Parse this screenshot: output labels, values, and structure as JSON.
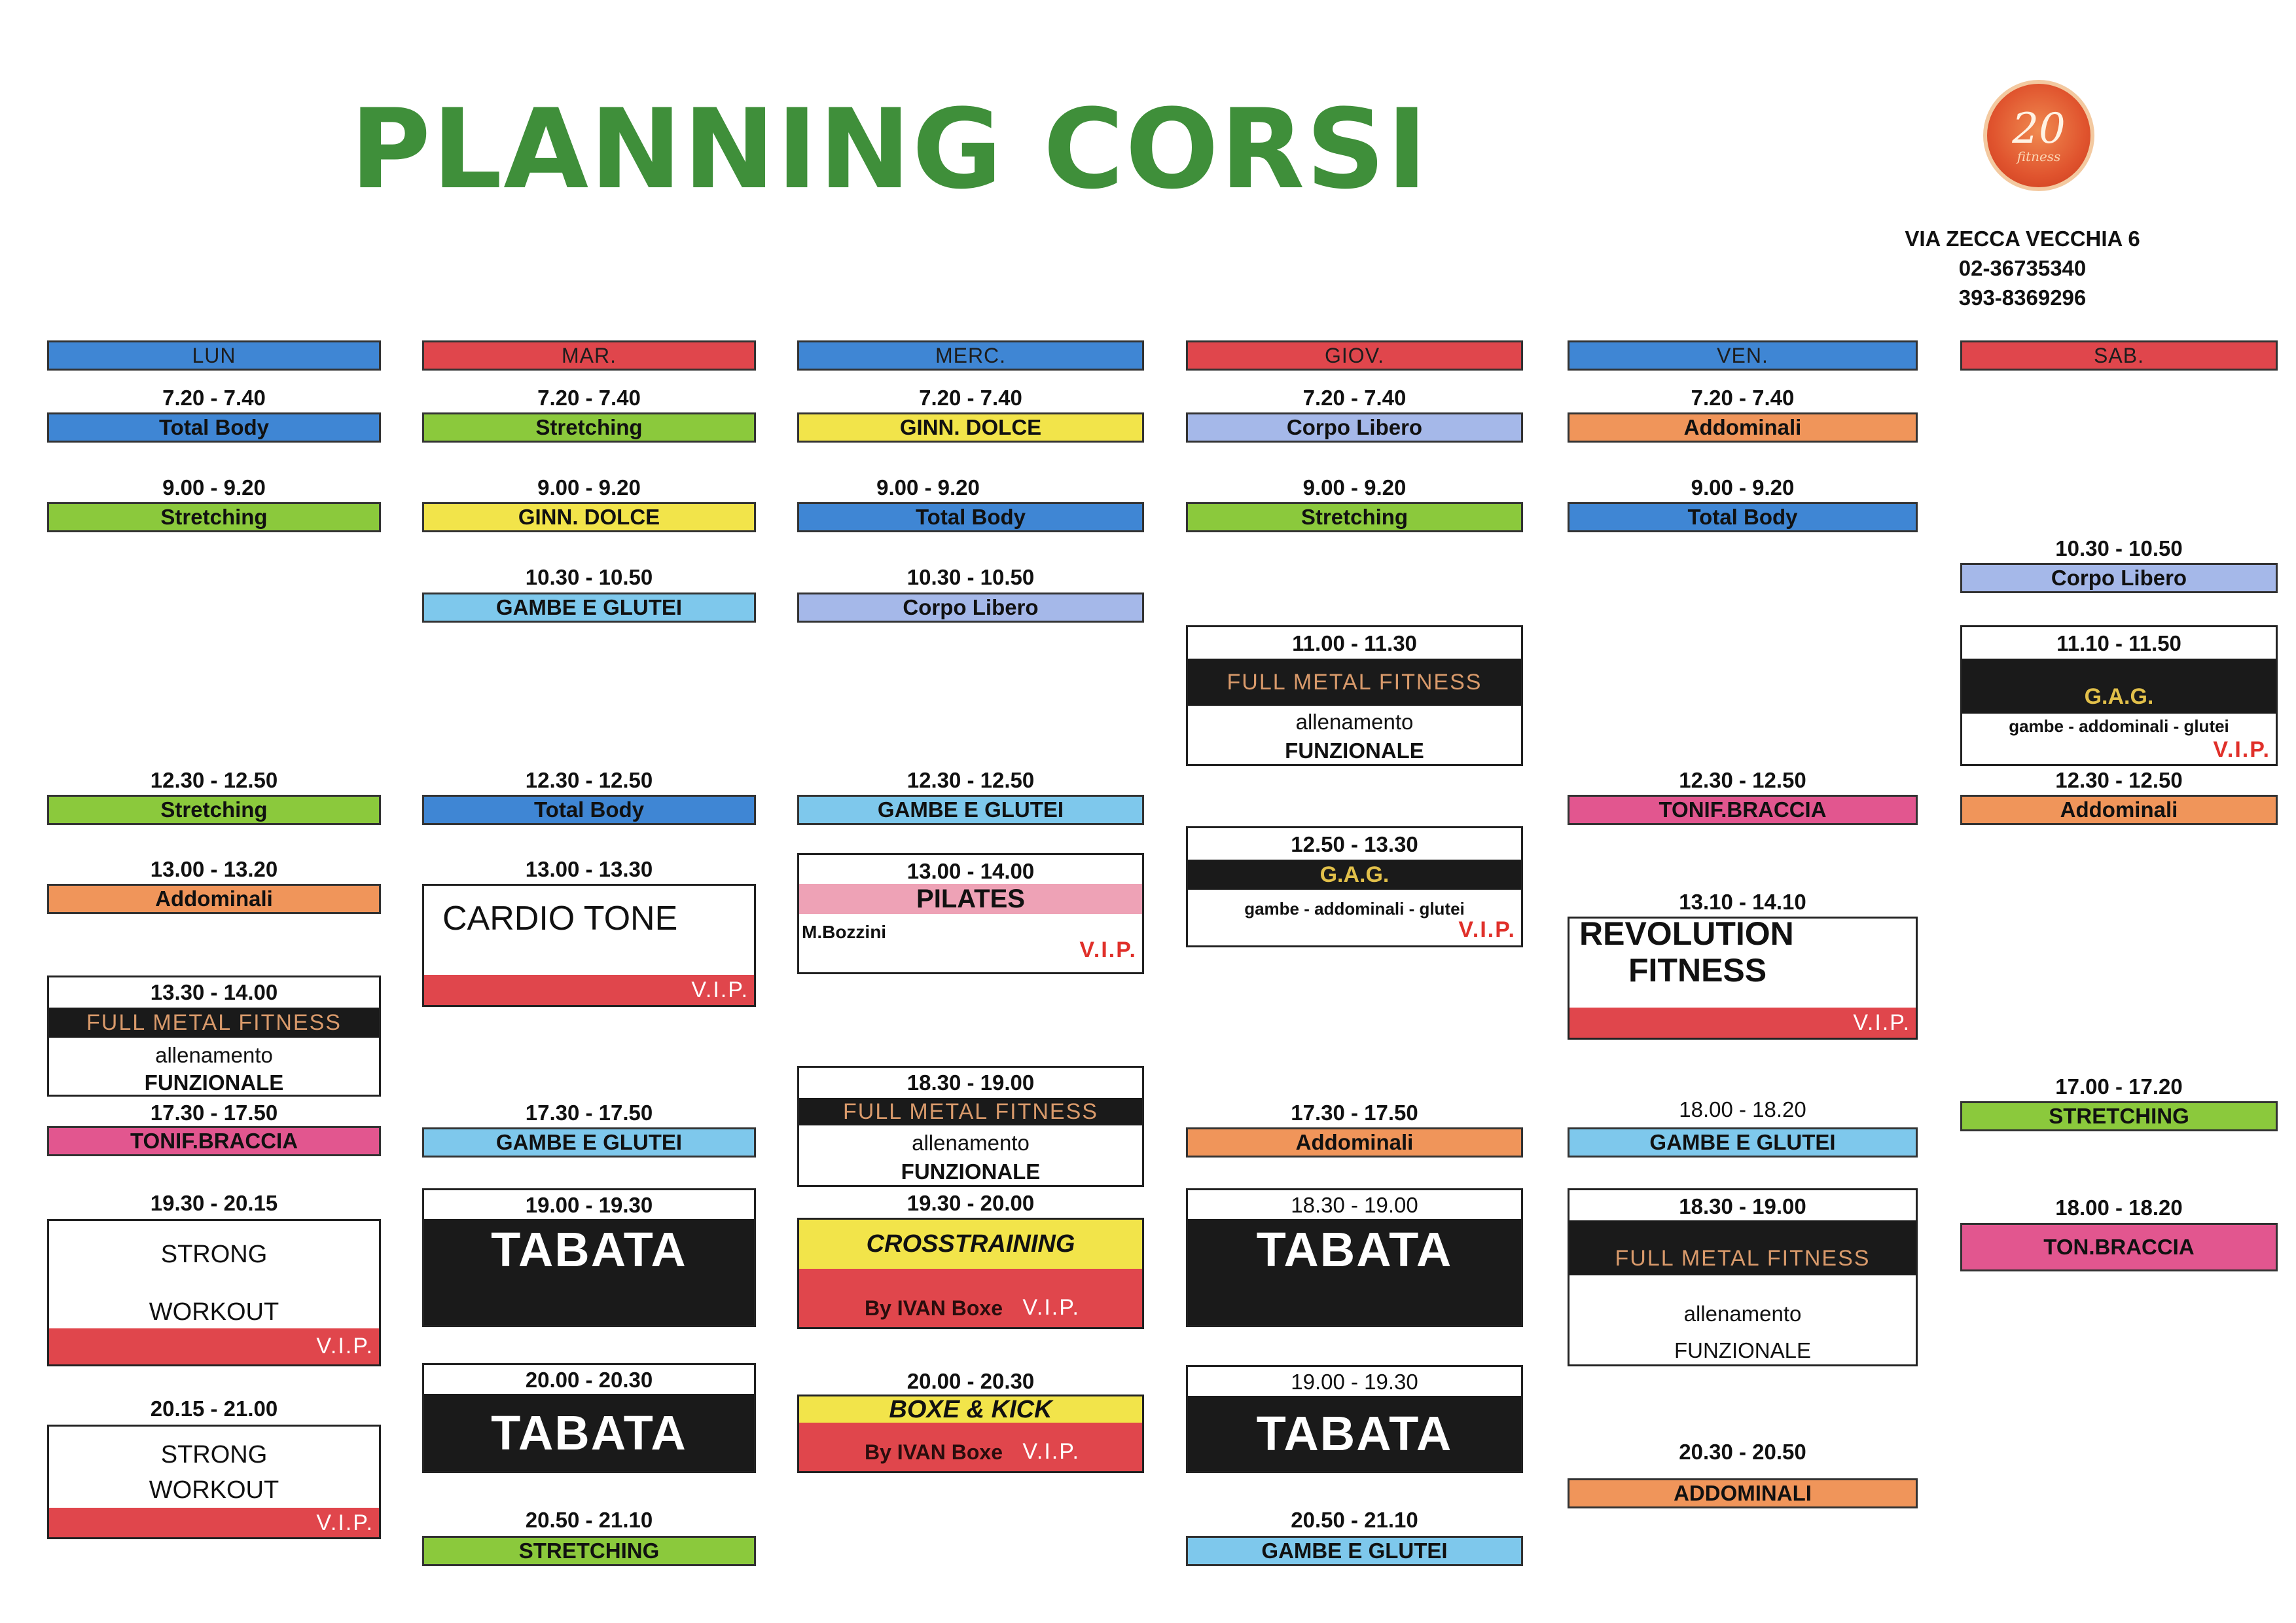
{
  "header": {
    "title": "PLANNING CORSI",
    "logo_number": "20",
    "logo_tag": "fitness",
    "address": "VIA ZECCA VECCHIA 6",
    "phone1": "02-36735340",
    "phone2": "393-8369296"
  },
  "days": [
    "LUN",
    "MAR.",
    "MERC.",
    "GIOV.",
    "VEN.",
    "SAB."
  ],
  "colors": {
    "blue": "#3f86d4",
    "red": "#e0464c",
    "green": "#8bc93c",
    "yellow": "#f2e44a",
    "lavender": "#a5b8e9",
    "orange": "#f0955a",
    "sky": "#7ec8ec",
    "pink": "#e2568f",
    "rose": "#eea2b6",
    "black": "#1a1a1a",
    "title_green": "#3f8f3a"
  },
  "lun": {
    "c1_time": "7.20 - 7.40",
    "c1": "Total Body",
    "c2_time": "9.00 - 9.20",
    "c2": "Stretching",
    "c3_time": "12.30 - 12.50",
    "c3": "Stretching",
    "c4_time": "13.00 - 13.20",
    "c4": "Addominali",
    "c5_time": "13.30 - 14.00",
    "c5_title": "FULL METAL FITNESS",
    "c5_l1": "allenamento",
    "c5_l2": "FUNZIONALE",
    "c6_time": "17.30 - 17.50",
    "c6": "TONIF.BRACCIA",
    "c7_time": "19.30 - 20.15",
    "c7_l1": "STRONG",
    "c7_l2": "WORKOUT",
    "c7_vip": "V.I.P.",
    "c8_time": "20.15 - 21.00",
    "c8_l1": "STRONG",
    "c8_l2": "WORKOUT",
    "c8_vip": "V.I.P."
  },
  "mar": {
    "c1_time": "7.20 - 7.40",
    "c1": "Stretching",
    "c2_time": "9.00 - 9.20",
    "c2": "GINN. DOLCE",
    "c3_time": "10.30 - 10.50",
    "c3": "GAMBE E GLUTEI",
    "c4_time": "12.30 - 12.50",
    "c4": "Total Body",
    "c5_time": "13.00 - 13.30",
    "c5": "CARDIO TONE",
    "c5_vip": "V.I.P.",
    "c6_time": "17.30 - 17.50",
    "c6": "GAMBE E GLUTEI",
    "c7_time": "19.00 - 19.30",
    "c7": "TABATA",
    "c8_time": "20.00 - 20.30",
    "c8": "TABATA",
    "c9_time": "20.50 - 21.10",
    "c9": "STRETCHING"
  },
  "merc": {
    "c1_time": "7.20 - 7.40",
    "c1": "GINN. DOLCE",
    "c2_time": "9.00 - 9.20",
    "c2": "Total Body",
    "c3_time": "10.30 - 10.50",
    "c3": "Corpo Libero",
    "c4_time": "12.30 - 12.50",
    "c4": "GAMBE E GLUTEI",
    "c5_time": "13.00 - 14.00",
    "c5": "PILATES",
    "c5_teacher": "M.Bozzini",
    "c5_vip": "V.I.P.",
    "c6_time": "18.30 - 19.00",
    "c6_title": "FULL METAL FITNESS",
    "c6_l1": "allenamento",
    "c6_l2": "FUNZIONALE",
    "c7_time": "19.30 - 20.00",
    "c7": "CROSSTRAINING",
    "c7_by": "By IVAN Boxe",
    "c7_vip": "V.I.P.",
    "c8_time": "20.00 - 20.30",
    "c8": "BOXE & KICK",
    "c8_by": "By IVAN Boxe",
    "c8_vip": "V.I.P."
  },
  "giov": {
    "c1_time": "7.20 - 7.40",
    "c1": "Corpo Libero",
    "c2_time": "9.00 - 9.20",
    "c2": "Stretching",
    "c3_time": "11.00 - 11.30",
    "c3_title": "FULL METAL FITNESS",
    "c3_l1": "allenamento",
    "c3_l2": "FUNZIONALE",
    "c4_time": "12.50 - 13.30",
    "c4_title": "G.A.G.",
    "c4_sub": "gambe - addominali - glutei",
    "c4_vip": "V.I.P.",
    "c5_time": "17.30 - 17.50",
    "c5": "Addominali",
    "c6_time": "18.30 - 19.00",
    "c6": "TABATA",
    "c7_time": "19.00 - 19.30",
    "c7": "TABATA",
    "c8_time": "20.50 - 21.10",
    "c8": "GAMBE E GLUTEI"
  },
  "ven": {
    "c1_time": "7.20 - 7.40",
    "c1": "Addominali",
    "c2_time": "9.00 - 9.20",
    "c2": "Total Body",
    "c3_time": "12.30 - 12.50",
    "c3": "TONIF.BRACCIA",
    "c4_time": "13.10 - 14.10",
    "c4_l1": "REVOLUTION",
    "c4_l2": "FITNESS",
    "c4_vip": "V.I.P.",
    "c5_time": "18.00 - 18.20",
    "c5": "GAMBE E GLUTEI",
    "c6_time": "18.30 - 19.00",
    "c6_title": "FULL METAL FITNESS",
    "c6_l1": "allenamento",
    "c6_l2": "FUNZIONALE",
    "c7_time": "20.30 - 20.50",
    "c7": "ADDOMINALI"
  },
  "sab": {
    "c1_time": "10.30 - 10.50",
    "c1": "Corpo Libero",
    "c2_time": "11.10 - 11.50",
    "c2_title": "G.A.G.",
    "c2_sub": "gambe - addominali - glutei",
    "c2_vip": "V.I.P.",
    "c3_time": "12.30 - 12.50",
    "c3": "Addominali",
    "c4_time": "17.00 - 17.20",
    "c4": "STRETCHING",
    "c5_time": "18.00 - 18.20",
    "c5": "TON.BRACCIA"
  }
}
